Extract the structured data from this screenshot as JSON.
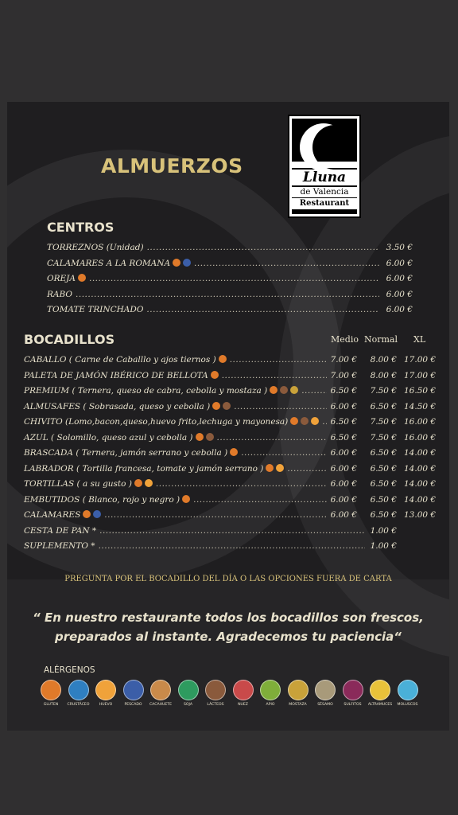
{
  "title": "ALMUERZOS",
  "logo": {
    "line1": "Lluna",
    "line2": "de Valencia",
    "line3": "Restaurant"
  },
  "centros": {
    "heading": "CENTROS",
    "items": [
      {
        "name": "TORREZNOS (Unidad)",
        "price": "3.50 €",
        "icons": []
      },
      {
        "name": "CALAMARES A LA ROMANA",
        "price": "6.00 €",
        "icons": [
          "gluten",
          "pescado"
        ]
      },
      {
        "name": "OREJA",
        "price": "6.00 €",
        "icons": [
          "gluten"
        ]
      },
      {
        "name": "RABO",
        "price": "6.00 €",
        "icons": []
      },
      {
        "name": "TOMATE TRINCHADO",
        "price": "6.00 €",
        "icons": []
      }
    ]
  },
  "bocadillos": {
    "heading": "BOCADILLOS",
    "columns": [
      "Medio",
      "Normal",
      "XL"
    ],
    "items": [
      {
        "name": "CABALLO ( Carne de Caballlo y ajos tiernos )",
        "icons": [
          "gluten"
        ],
        "prices": [
          "7.00 €",
          "8.00 €",
          "17.00 €"
        ]
      },
      {
        "name": "PALETA DE JAMÓN IBÉRICO DE BELLOTA",
        "icons": [
          "gluten"
        ],
        "prices": [
          "7.00 €",
          "8.00 €",
          "17.00 €"
        ]
      },
      {
        "name": "PREMIUM ( Ternera, queso de cabra, cebolla y mostaza )",
        "icons": [
          "gluten",
          "lacteos",
          "mostaza"
        ],
        "prices": [
          "6.50 €",
          "7.50 €",
          "16.50 €"
        ]
      },
      {
        "name": "ALMUSAFES ( Sobrasada, queso y cebolla )",
        "icons": [
          "gluten",
          "lacteos"
        ],
        "prices": [
          "6.00 €",
          "6.50 €",
          "14.50 €"
        ]
      },
      {
        "name": "CHIVITO (Lomo,bacon,queso,huevo frito,lechuga y mayonesa)",
        "icons": [
          "gluten",
          "lacteos",
          "huevo"
        ],
        "prices": [
          "6.50 €",
          "7.50 €",
          "16.00 €"
        ]
      },
      {
        "name": "AZUL ( Solomillo, queso azul y cebolla )",
        "icons": [
          "gluten",
          "lacteos"
        ],
        "prices": [
          "6.50 €",
          "7.50 €",
          "16.00 €"
        ]
      },
      {
        "name": "BRASCADA ( Ternera, jamón serrano y cebolla )",
        "icons": [
          "gluten"
        ],
        "prices": [
          "6.00 €",
          "6.50 €",
          "14.00 €"
        ]
      },
      {
        "name": "LABRADOR ( Tortilla francesa, tomate y jamón serrano )",
        "icons": [
          "gluten",
          "huevo"
        ],
        "prices": [
          "6.00 €",
          "6.50 €",
          "14.00 €"
        ]
      },
      {
        "name": "TORTILLAS ( a su gusto )",
        "icons": [
          "gluten",
          "huevo"
        ],
        "prices": [
          "6.00 €",
          "6.50 €",
          "14.00 €"
        ]
      },
      {
        "name": "EMBUTIDOS ( Blanco, rojo y negro )",
        "icons": [
          "gluten"
        ],
        "prices": [
          "6.00 €",
          "6.50 €",
          "14.00 €"
        ]
      },
      {
        "name": "CALAMARES",
        "icons": [
          "gluten",
          "pescado"
        ],
        "prices": [
          "6.00 €",
          "6.50 €",
          "13.00 €"
        ]
      }
    ],
    "extras": [
      {
        "name": "CESTA DE PAN *",
        "price": "1.00 €"
      },
      {
        "name": "SUPLEMENTO *",
        "price": "1.00 €"
      }
    ]
  },
  "note": "PREGUNTA POR EL BOCADILLO DEL DÍA O LAS OPCIONES FUERA DE CARTA",
  "quote_line1": "“ En nuestro restaurante todos los bocadillos son frescos,",
  "quote_line2": "preparados al instante. Agradecemos tu paciencia“",
  "allergens": {
    "title": "ALÉRGENOS",
    "items": [
      {
        "id": "gluten",
        "label": "GLUTEN",
        "color": "#e07a2a"
      },
      {
        "id": "crustaceo",
        "label": "CRUSTÁCEO",
        "color": "#2f7fc1"
      },
      {
        "id": "huevo",
        "label": "HUEVO",
        "color": "#f0a23a"
      },
      {
        "id": "pescado",
        "label": "PESCADO",
        "color": "#3b5ea8"
      },
      {
        "id": "cacahuete",
        "label": "CACAHUETE",
        "color": "#c98a4a"
      },
      {
        "id": "soja",
        "label": "SOJA",
        "color": "#2e9b5f"
      },
      {
        "id": "lacteos",
        "label": "LÁCTEOS",
        "color": "#8a5a3c"
      },
      {
        "id": "nuez",
        "label": "NUEZ",
        "color": "#c94a4a"
      },
      {
        "id": "apio",
        "label": "APIO",
        "color": "#7fae3a"
      },
      {
        "id": "mostaza",
        "label": "MOSTAZA",
        "color": "#c9a23a"
      },
      {
        "id": "sesamo",
        "label": "SÉSAMO",
        "color": "#a89a7a"
      },
      {
        "id": "sulfitos",
        "label": "SULFITOS",
        "color": "#8a2a5a"
      },
      {
        "id": "altramuces",
        "label": "ALTRAMUCES",
        "color": "#e8c23a"
      },
      {
        "id": "moluscos",
        "label": "MOLUSCOS",
        "color": "#4ab0d8"
      }
    ]
  }
}
